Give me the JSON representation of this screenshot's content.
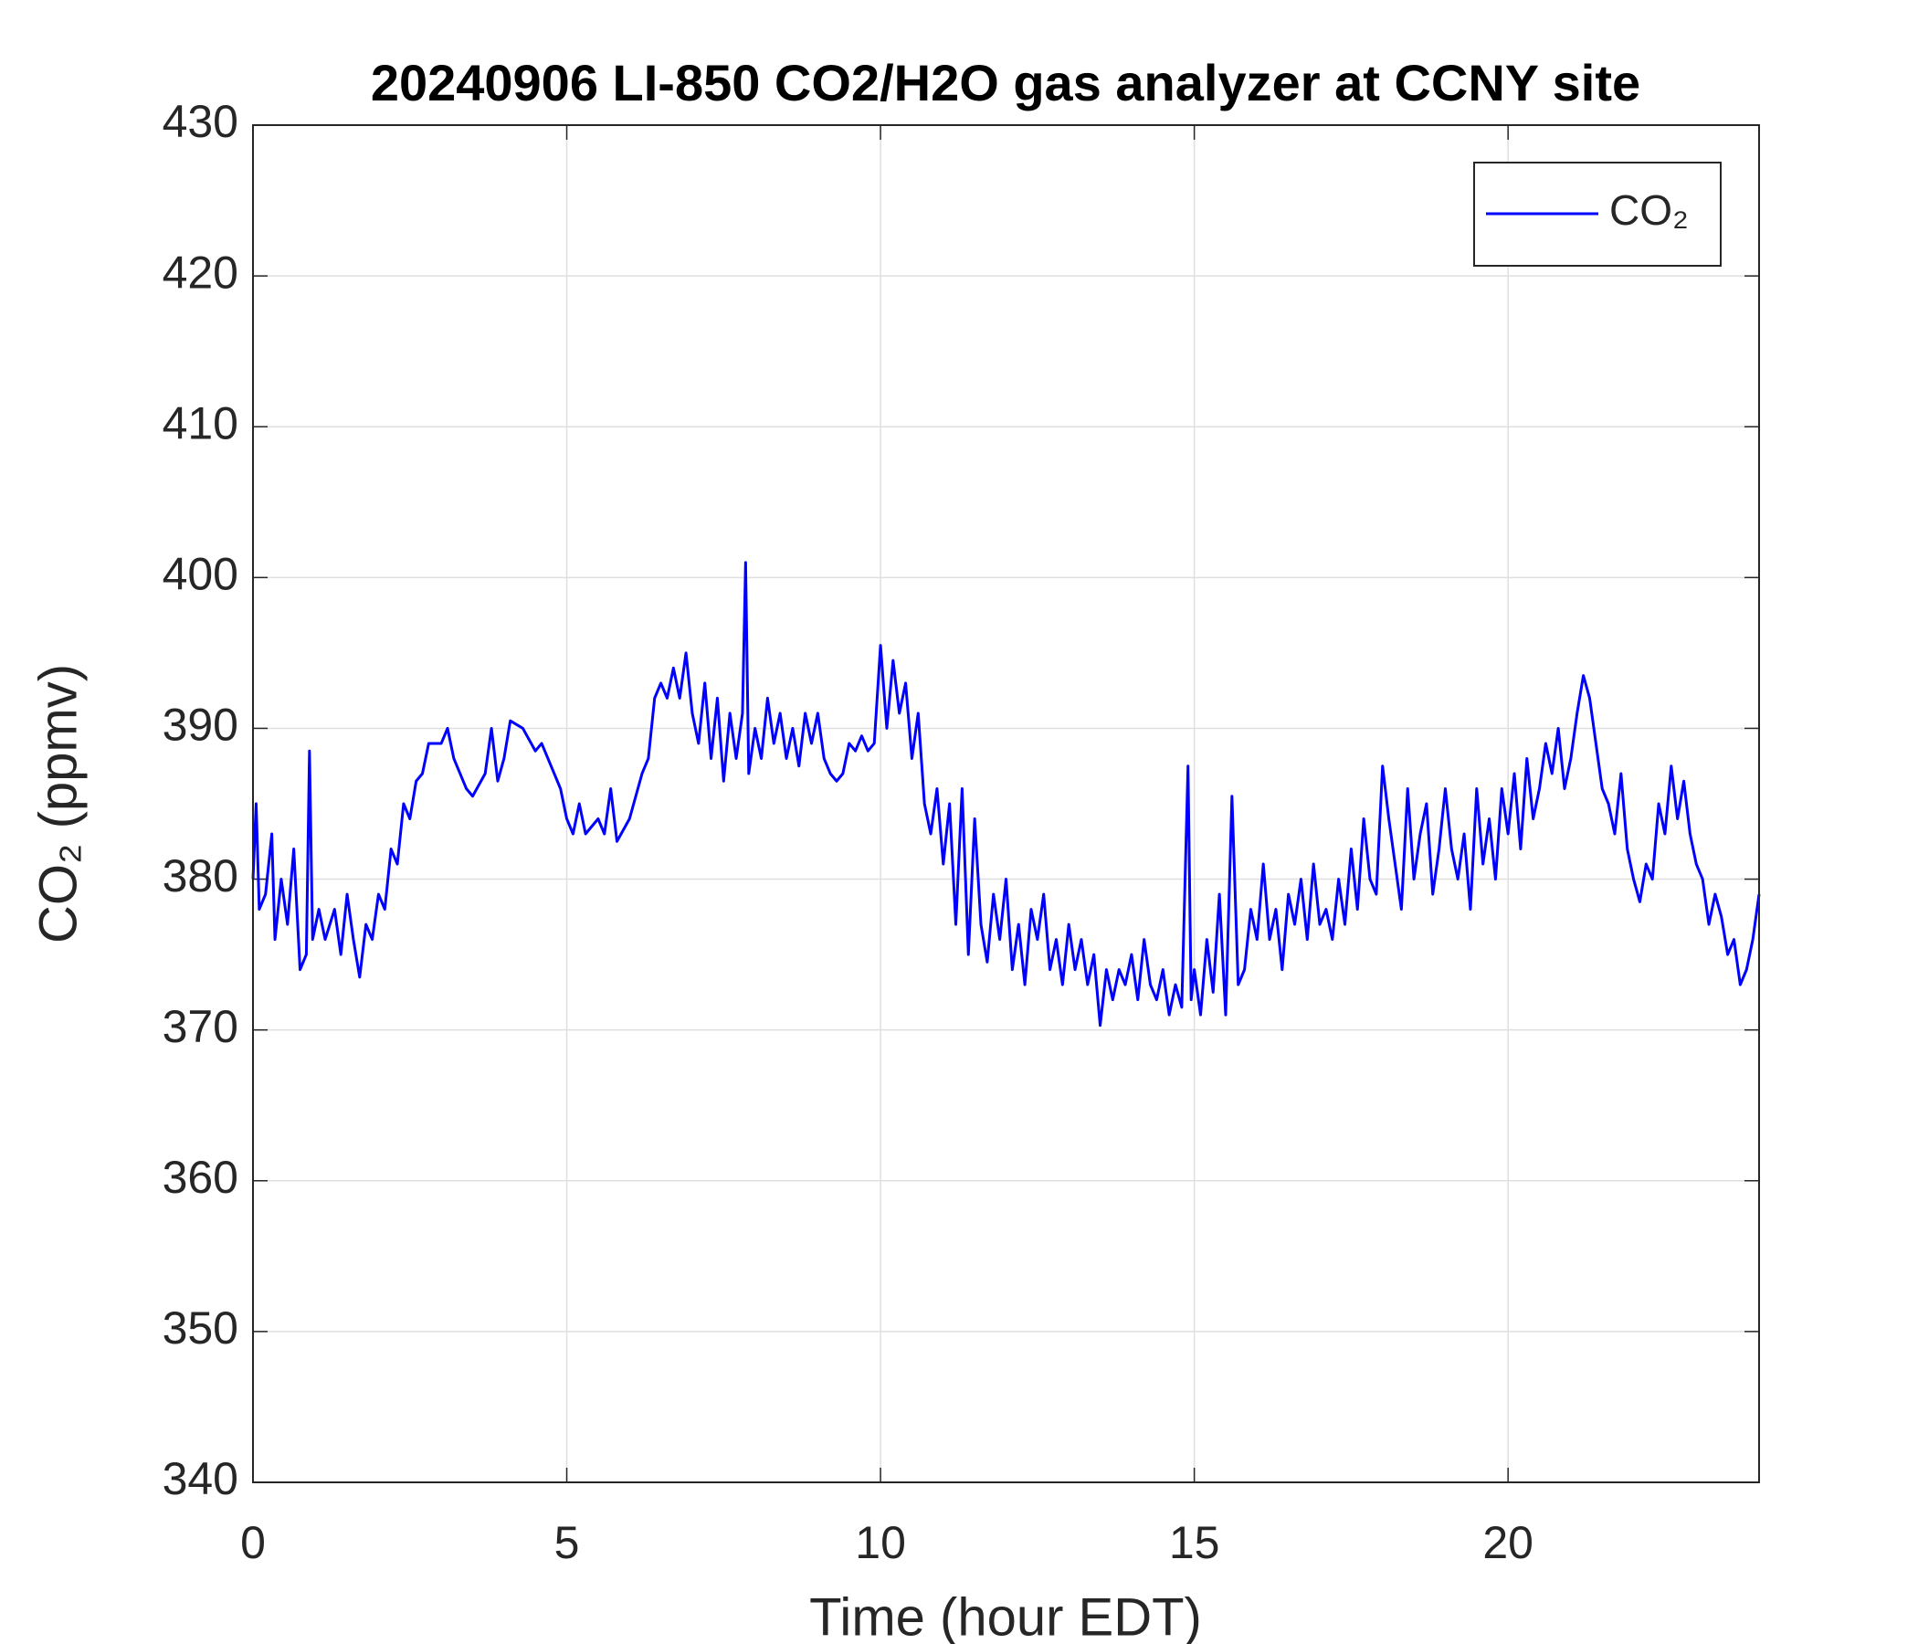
{
  "chart_data": {
    "type": "line",
    "title": "20240906 LI-850 CO2/H2O gas analyzer at CCNY site",
    "xlabel": "Time (hour EDT)",
    "ylabel": "CO₂ (ppmv)",
    "xlim": [
      0,
      24
    ],
    "xticks": [
      0,
      5,
      10,
      15,
      20
    ],
    "ylim": [
      340,
      430
    ],
    "yticks": [
      340,
      350,
      360,
      370,
      380,
      390,
      400,
      410,
      420,
      430
    ],
    "grid": true,
    "legend": "upper right",
    "x": [
      0.0,
      0.05,
      0.1,
      0.2,
      0.3,
      0.35,
      0.45,
      0.55,
      0.65,
      0.75,
      0.85,
      0.9,
      0.95,
      1.05,
      1.15,
      1.3,
      1.4,
      1.5,
      1.6,
      1.7,
      1.8,
      1.9,
      2.0,
      2.1,
      2.2,
      2.3,
      2.4,
      2.5,
      2.6,
      2.7,
      2.8,
      3.0,
      3.1,
      3.2,
      3.4,
      3.5,
      3.7,
      3.8,
      3.9,
      4.0,
      4.1,
      4.3,
      4.5,
      4.6,
      4.8,
      4.9,
      5.0,
      5.1,
      5.2,
      5.3,
      5.5,
      5.6,
      5.7,
      5.8,
      6.0,
      6.1,
      6.2,
      6.3,
      6.4,
      6.5,
      6.6,
      6.7,
      6.8,
      6.9,
      7.0,
      7.1,
      7.2,
      7.3,
      7.4,
      7.5,
      7.6,
      7.7,
      7.8,
      7.85,
      7.9,
      8.0,
      8.1,
      8.2,
      8.3,
      8.4,
      8.5,
      8.6,
      8.7,
      8.8,
      8.9,
      9.0,
      9.1,
      9.2,
      9.3,
      9.4,
      9.5,
      9.6,
      9.7,
      9.8,
      9.9,
      10.0,
      10.1,
      10.2,
      10.3,
      10.4,
      10.5,
      10.6,
      10.7,
      10.8,
      10.9,
      11.0,
      11.1,
      11.2,
      11.3,
      11.4,
      11.5,
      11.6,
      11.7,
      11.8,
      11.9,
      12.0,
      12.1,
      12.2,
      12.3,
      12.4,
      12.5,
      12.6,
      12.7,
      12.8,
      12.9,
      13.0,
      13.1,
      13.2,
      13.3,
      13.4,
      13.5,
      13.6,
      13.7,
      13.8,
      13.9,
      14.0,
      14.1,
      14.2,
      14.3,
      14.4,
      14.5,
      14.6,
      14.7,
      14.8,
      14.9,
      14.95,
      15.0,
      15.1,
      15.2,
      15.3,
      15.4,
      15.5,
      15.6,
      15.7,
      15.8,
      15.9,
      16.0,
      16.1,
      16.2,
      16.3,
      16.4,
      16.5,
      16.6,
      16.7,
      16.8,
      16.9,
      17.0,
      17.1,
      17.2,
      17.3,
      17.4,
      17.5,
      17.6,
      17.7,
      17.8,
      17.9,
      18.0,
      18.1,
      18.2,
      18.3,
      18.4,
      18.5,
      18.6,
      18.7,
      18.8,
      18.9,
      19.0,
      19.1,
      19.2,
      19.3,
      19.4,
      19.5,
      19.6,
      19.7,
      19.8,
      19.9,
      20.0,
      20.1,
      20.2,
      20.3,
      20.4,
      20.5,
      20.6,
      20.7,
      20.8,
      20.9,
      21.0,
      21.1,
      21.2,
      21.3,
      21.4,
      21.5,
      21.6,
      21.7,
      21.8,
      21.9,
      22.0,
      22.1,
      22.2,
      22.3,
      22.4,
      22.5,
      22.6,
      22.7,
      22.8,
      22.9,
      23.0,
      23.1,
      23.2,
      23.3,
      23.4,
      23.5,
      23.6,
      23.7,
      23.8,
      23.9,
      24.0
    ],
    "series": [
      {
        "name": "CO₂",
        "color": "#0000ff",
        "values": [
          380,
          385,
          378,
          379,
          383,
          376,
          380,
          377,
          382,
          374,
          375,
          388.5,
          376,
          378,
          376,
          378,
          375,
          379,
          376,
          373.5,
          377,
          376,
          379,
          378,
          382,
          381,
          385,
          384,
          386.5,
          387,
          389,
          389,
          390,
          388,
          386,
          385.5,
          387,
          390,
          386.5,
          388,
          390.5,
          390,
          388.5,
          389,
          387,
          386,
          384,
          383,
          385,
          383,
          384,
          383,
          386,
          382.5,
          384,
          385.5,
          387,
          388,
          392,
          393,
          392,
          394,
          392,
          395,
          391,
          389,
          393,
          388,
          392,
          386.5,
          391,
          388,
          391,
          401,
          387,
          390,
          388,
          392,
          389,
          391,
          388,
          390,
          387.5,
          391,
          389,
          391,
          388,
          387,
          386.5,
          387,
          389,
          388.5,
          389.5,
          388.5,
          389,
          395.5,
          390,
          394.5,
          391,
          393,
          388,
          391,
          385,
          383,
          386,
          381,
          385,
          377,
          386,
          375,
          384,
          377,
          374.5,
          379,
          376,
          380,
          374,
          377,
          373,
          378,
          376,
          379,
          374,
          376,
          373,
          377,
          374,
          376,
          373,
          375,
          370.3,
          374,
          372,
          374,
          373,
          375,
          372,
          376,
          373,
          372,
          374,
          371,
          373,
          371.5,
          387.5,
          372,
          374,
          371,
          376,
          372.5,
          379,
          371,
          385.5,
          373,
          374,
          378,
          376,
          381,
          376,
          378,
          374,
          379,
          377,
          380,
          376,
          381,
          377,
          378,
          376,
          380,
          377,
          382,
          378,
          384,
          380,
          379,
          387.5,
          384,
          381,
          378,
          386,
          380,
          383,
          385,
          379,
          382,
          386,
          382,
          380,
          383,
          378,
          386,
          381,
          384,
          380,
          386,
          383,
          387,
          382,
          388,
          384,
          386,
          389,
          387,
          390,
          386,
          388,
          391,
          393.5,
          392,
          389,
          386,
          385,
          383,
          387,
          382,
          380,
          378.5,
          381,
          380,
          385,
          383,
          387.5,
          384,
          386.5,
          383,
          381,
          380,
          377,
          379,
          377.5,
          375,
          376,
          373,
          374,
          376,
          379
        ]
      }
    ]
  }
}
